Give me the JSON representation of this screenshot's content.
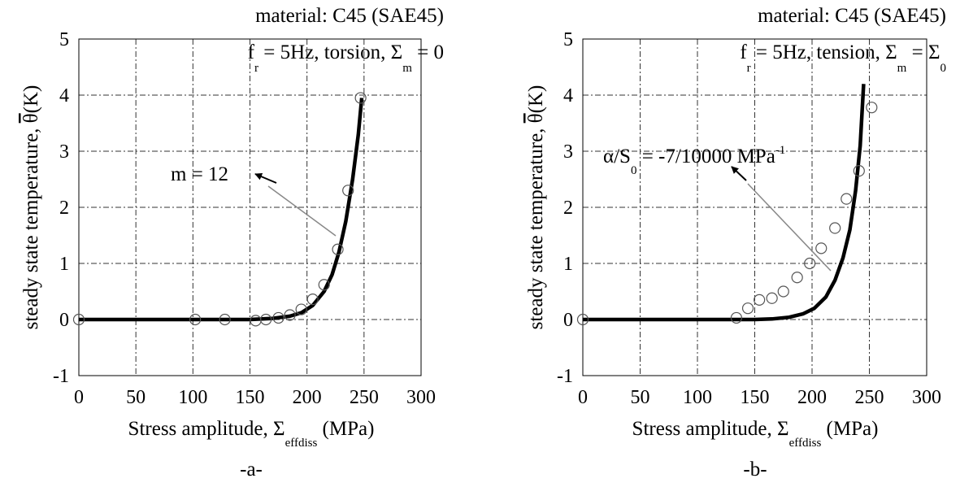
{
  "chart_data": [
    {
      "type": "scatter",
      "panel_label": "-a-",
      "annotation_material": "material: C45 (SAE45)",
      "annotation_conditions": {
        "f": "f",
        "f_sub": "r",
        "mid": " = 5Hz, torsion, Σ",
        "sigma_sub": "m",
        "tail": " = 0"
      },
      "fit_label": "m = 12",
      "ylabel": "steady state temperature, θ(K)",
      "xlabel": {
        "main": "Stress amplitude, Σ",
        "sub": "effdiss",
        "unit": " (MPa)"
      },
      "xlim": [
        0,
        300
      ],
      "ylim": [
        -1,
        5
      ],
      "xticks": [
        0,
        50,
        100,
        150,
        200,
        250,
        300
      ],
      "yticks": [
        -1,
        0,
        1,
        2,
        3,
        4,
        5
      ],
      "xtick_labels": [
        "0",
        "50",
        "100",
        "150",
        "200",
        "250",
        "300"
      ],
      "ytick_labels": [
        "-1",
        "0",
        "1",
        "2",
        "3",
        "4",
        "5"
      ],
      "grid": true,
      "series": [
        {
          "kind": "markers",
          "x": [
            0,
            102,
            128,
            155,
            164,
            175,
            185,
            195,
            205,
            215,
            227,
            236,
            247
          ],
          "y": [
            0,
            0,
            0,
            -0.02,
            0,
            0.03,
            0.08,
            0.18,
            0.36,
            0.62,
            1.25,
            2.3,
            3.95
          ]
        },
        {
          "kind": "line",
          "x": [
            0,
            150,
            170,
            185,
            195,
            205,
            215,
            222,
            228,
            234,
            240,
            245,
            248
          ],
          "y": [
            0,
            0,
            0.02,
            0.06,
            0.12,
            0.25,
            0.5,
            0.8,
            1.2,
            1.75,
            2.5,
            3.3,
            3.95
          ]
        }
      ]
    },
    {
      "type": "scatter",
      "panel_label": "-b-",
      "annotation_material": "material: C45 (SAE45)",
      "annotation_conditions": {
        "f": "f",
        "f_sub": "r",
        "mid": " = 5Hz, tension, Σ",
        "sigma_sub": "m",
        "tail": " = Σ",
        "tail_sub": "0"
      },
      "fit_label": {
        "main": "α/S",
        "sub": "0",
        "rest": " = -7/10000 MPa",
        "sup": "-1"
      },
      "ylabel": "steady state temperature, θ(K)",
      "xlabel": {
        "main": "Stress amplitude, Σ",
        "sub": "effdiss",
        "unit": " (MPa)"
      },
      "xlim": [
        0,
        300
      ],
      "ylim": [
        -1,
        5
      ],
      "xticks": [
        0,
        50,
        100,
        150,
        200,
        250,
        300
      ],
      "yticks": [
        -1,
        0,
        1,
        2,
        3,
        4,
        5
      ],
      "xtick_labels": [
        "0",
        "50",
        "100",
        "150",
        "200",
        "250",
        "300"
      ],
      "ytick_labels": [
        "-1",
        "0",
        "1",
        "2",
        "3",
        "4",
        "5"
      ],
      "grid": true,
      "series": [
        {
          "kind": "markers",
          "x": [
            0,
            134,
            144,
            154,
            165,
            175,
            187,
            198,
            208,
            220,
            230,
            241,
            252
          ],
          "y": [
            0,
            0.03,
            0.2,
            0.35,
            0.38,
            0.5,
            0.75,
            1.0,
            1.27,
            1.63,
            2.15,
            2.65,
            3.78
          ]
        },
        {
          "kind": "line",
          "x": [
            0,
            150,
            165,
            180,
            192,
            202,
            212,
            220,
            227,
            233,
            238,
            242,
            245
          ],
          "y": [
            0,
            0,
            0.01,
            0.04,
            0.1,
            0.2,
            0.4,
            0.7,
            1.1,
            1.6,
            2.3,
            3.1,
            4.2
          ]
        }
      ]
    }
  ]
}
